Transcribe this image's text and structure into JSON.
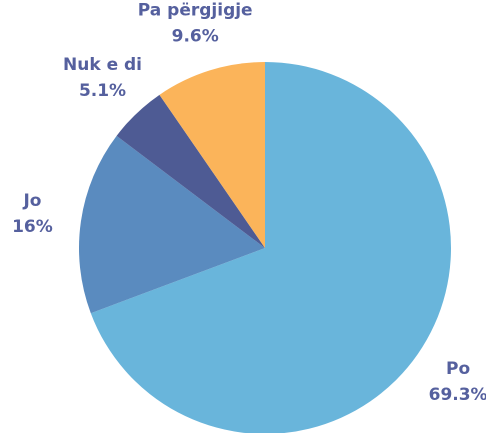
{
  "chart_data": {
    "type": "pie",
    "categories": [
      "Po",
      "Jo",
      "Nuk e di",
      "Pa përgjigje"
    ],
    "values": [
      69.3,
      16,
      5.1,
      9.6
    ],
    "value_labels": [
      "69.3%",
      "16%",
      "5.1%",
      "9.6%"
    ],
    "colors": [
      "#69b5db",
      "#5a8bbf",
      "#4e5b94",
      "#fbb45a"
    ]
  }
}
